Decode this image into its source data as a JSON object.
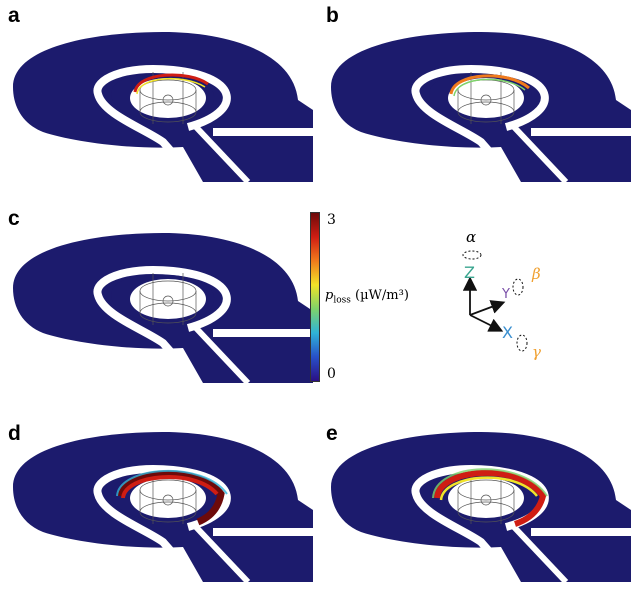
{
  "panels": [
    {
      "label": "a"
    },
    {
      "label": "b"
    },
    {
      "label": "c"
    },
    {
      "label": "d"
    },
    {
      "label": "e"
    }
  ],
  "colorbar": {
    "max_label": "3",
    "min_label": "0",
    "title_main": "p",
    "title_sub": "loss",
    "title_units": "(µW/m³)",
    "colors": [
      "#2b0f84",
      "#2850c8",
      "#2fb3d8",
      "#7ed36a",
      "#f2e428",
      "#f07b1c",
      "#cf1d13",
      "#6d0a0a"
    ]
  },
  "axes": {
    "z": "Z",
    "y": "Y",
    "x": "X",
    "alpha": "α",
    "beta": "β",
    "gamma": "γ",
    "colors": {
      "z": "#3aa58f",
      "y": "#7a4fa8",
      "x": "#3a8fd0",
      "greek": "#f0a030",
      "alpha": "#000000"
    }
  },
  "colors": {
    "background_navy": "#1c1b6d",
    "white": "#ffffff",
    "wire": "#555555"
  }
}
